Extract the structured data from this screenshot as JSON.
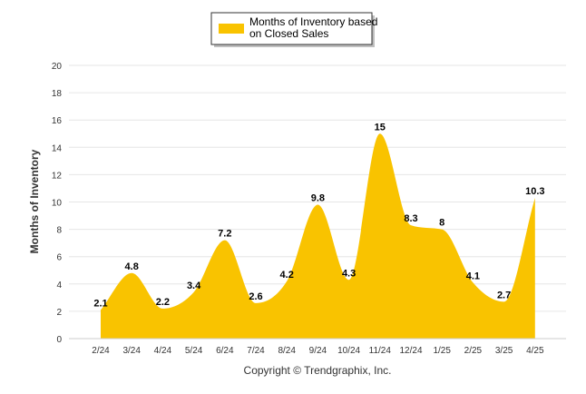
{
  "chart_data": {
    "type": "area",
    "categories": [
      "2/24",
      "3/24",
      "4/24",
      "5/24",
      "6/24",
      "7/24",
      "8/24",
      "9/24",
      "10/24",
      "11/24",
      "12/24",
      "1/25",
      "2/25",
      "3/25",
      "4/25"
    ],
    "series": [
      {
        "name": "Months of Inventory based on Closed Sales",
        "values": [
          2.1,
          4.8,
          2.2,
          3.4,
          7.2,
          2.6,
          4.2,
          9.8,
          4.3,
          15,
          8.3,
          8,
          4.1,
          2.7,
          10.3
        ],
        "labels": [
          "2.1",
          "4.8",
          "2.2",
          "3.4",
          "7.2",
          "2.6",
          "4.2",
          "9.8",
          "4.3",
          "15",
          "8.3",
          "8",
          "4.1",
          "2.7",
          "10.3"
        ],
        "color": "#F9C300"
      }
    ],
    "ylabel": "Months of Inventory",
    "ylim": [
      0,
      20
    ],
    "yticks": [
      "0",
      "2",
      "4",
      "6",
      "8",
      "10",
      "12",
      "14",
      "16",
      "18",
      "20"
    ],
    "grid": true,
    "legend_position": "top"
  },
  "legend": {
    "line1": "Months of Inventory based",
    "line2": "on Closed Sales"
  },
  "credit": "Copyright © Trendgraphix, Inc."
}
